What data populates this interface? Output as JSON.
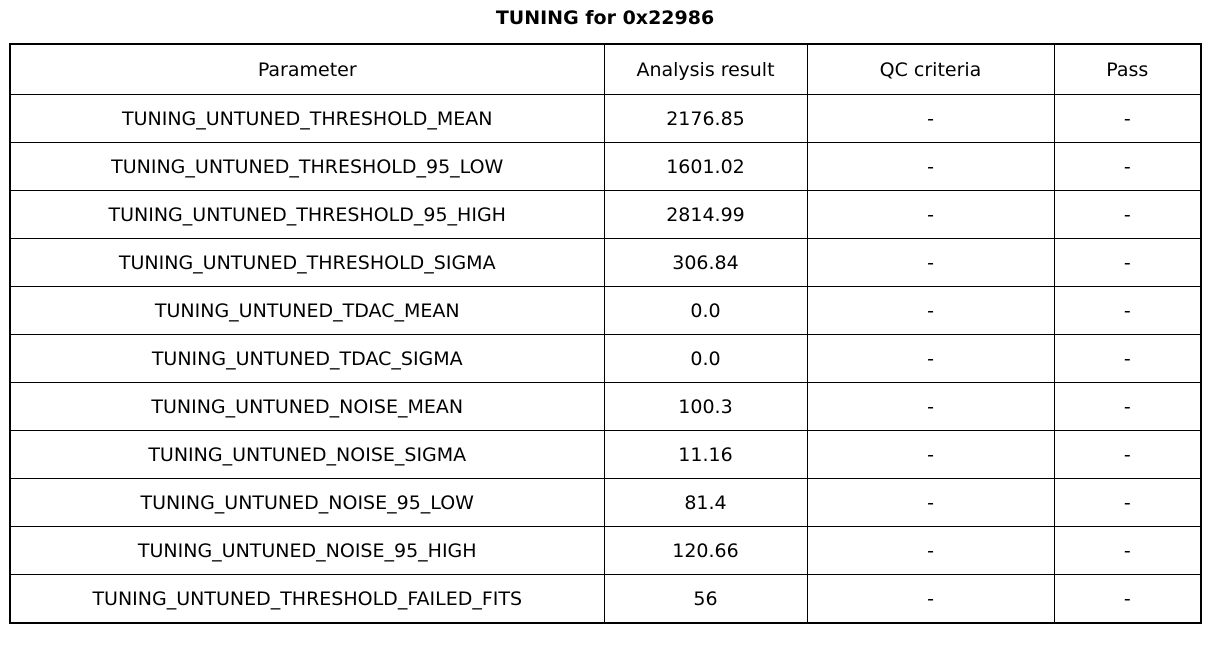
{
  "title": "TUNING for 0x22986",
  "chart_data": {
    "type": "table",
    "title": "TUNING for 0x22986",
    "columns": [
      "Parameter",
      "Analysis result",
      "QC criteria",
      "Pass"
    ],
    "rows": [
      [
        "TUNING_UNTUNED_THRESHOLD_MEAN",
        "2176.85",
        "-",
        "-"
      ],
      [
        "TUNING_UNTUNED_THRESHOLD_95_LOW",
        "1601.02",
        "-",
        "-"
      ],
      [
        "TUNING_UNTUNED_THRESHOLD_95_HIGH",
        "2814.99",
        "-",
        "-"
      ],
      [
        "TUNING_UNTUNED_THRESHOLD_SIGMA",
        "306.84",
        "-",
        "-"
      ],
      [
        "TUNING_UNTUNED_TDAC_MEAN",
        "0.0",
        "-",
        "-"
      ],
      [
        "TUNING_UNTUNED_TDAC_SIGMA",
        "0.0",
        "-",
        "-"
      ],
      [
        "TUNING_UNTUNED_NOISE_MEAN",
        "100.3",
        "-",
        "-"
      ],
      [
        "TUNING_UNTUNED_NOISE_SIGMA",
        "11.16",
        "-",
        "-"
      ],
      [
        "TUNING_UNTUNED_NOISE_95_LOW",
        "81.4",
        "-",
        "-"
      ],
      [
        "TUNING_UNTUNED_NOISE_95_HIGH",
        "120.66",
        "-",
        "-"
      ],
      [
        "TUNING_UNTUNED_THRESHOLD_FAILED_FITS",
        "56",
        "-",
        "-"
      ]
    ],
    "layout": {
      "grid": true,
      "cell_alignment": "center",
      "empty_value_marker": "-"
    }
  },
  "colors": {
    "border": "#000000",
    "background": "#ffffff",
    "text": "#000000"
  }
}
